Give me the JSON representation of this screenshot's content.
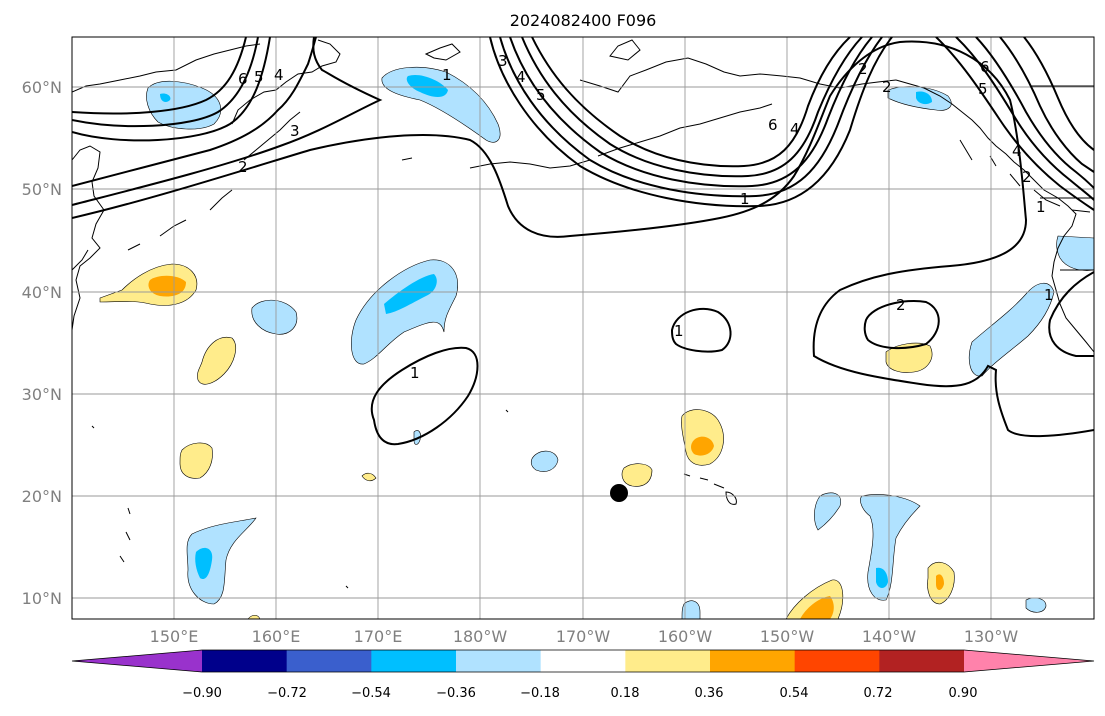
{
  "title": "2024082400 F096",
  "lat_labels": [
    "60°N",
    "50°N",
    "40°N",
    "30°N",
    "20°N",
    "10°N"
  ],
  "lon_labels": [
    "150°E",
    "160°E",
    "170°E",
    "180°W",
    "170°W",
    "160°W",
    "150°W",
    "140°W",
    "130°W"
  ],
  "contour_labels": [
    "6",
    "5",
    "4",
    "3",
    "2",
    "1",
    "5",
    "4",
    "3",
    "2",
    "1",
    "6",
    "4",
    "2",
    "1",
    "6",
    "5",
    "4",
    "2",
    "1",
    "1",
    "2",
    "1"
  ],
  "colorbar": {
    "tick_labels": [
      "−0.90",
      "−0.72",
      "−0.54",
      "−0.36",
      "−0.18",
      "0.18",
      "0.36",
      "0.54",
      "0.72",
      "0.90"
    ],
    "bins": [
      {
        "color": "#9932CC"
      },
      {
        "color": "#00008B"
      },
      {
        "color": "#3A5FCD"
      },
      {
        "color": "#00BFFF"
      },
      {
        "color": "#B0E2FF"
      },
      {
        "color": "#FFFFFF"
      },
      {
        "color": "#FFEC8B"
      },
      {
        "color": "#FFA500"
      },
      {
        "color": "#FF4500"
      },
      {
        "color": "#B22222"
      },
      {
        "color": "#FF82AB"
      }
    ]
  },
  "colors": {
    "light_blue": "#B0E2FF",
    "mid_blue": "#00BFFF",
    "light_yellow": "#FFEC8B",
    "orange": "#FFA500",
    "grid": "#9a9a9a",
    "axis_label": "#808080"
  },
  "marker": {
    "name": "storm-center-marker",
    "lat": 20.3,
    "lon": -166.3
  }
}
